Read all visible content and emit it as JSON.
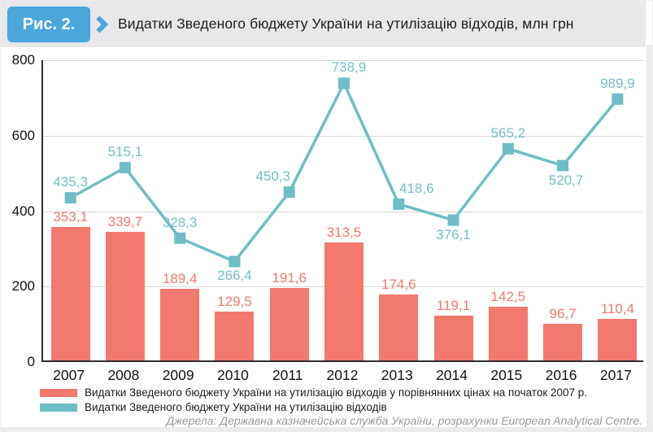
{
  "figure_label": "Рис. 2.",
  "title": "Видатки Зведеного бюджету України на утилізацію відходів, млн грн",
  "source_note": "Джерела: Державна казначейська служба України, розрахунки European Analytical Centre.",
  "colors": {
    "bar": "#F2796E",
    "line": "#6FBDC5",
    "bar_label": "#F2796E",
    "line_label": "#74BFC7",
    "badge": "#4AA7DB",
    "header_bg": "#E8E8EA",
    "grid": "#D8D8D8",
    "axis": "#2d2d2d",
    "tick_text": "#111111",
    "source_text": "#9a9a9a"
  },
  "chart_data": {
    "type": "bar",
    "title": "Видатки Зведеного бюджету України на утилізацію відходів, млн грн",
    "categories": [
      "2007",
      "2008",
      "2009",
      "2010",
      "2011",
      "2012",
      "2013",
      "2014",
      "2015",
      "2016",
      "2017"
    ],
    "series": [
      {
        "name": "Видатки Зведеного бюджету України на утилізацію відходів у порівнянних цінах на початок 2007 р.",
        "type": "bar",
        "values": [
          353.1,
          339.7,
          189.4,
          129.5,
          191.6,
          313.5,
          174.6,
          119.1,
          142.5,
          96.7,
          110.4
        ],
        "labels": [
          "353,1",
          "339,7",
          "189,4",
          "129,5",
          "191,6",
          "313,5",
          "174,6",
          "119,1",
          "142,5",
          "96,7",
          "110,4"
        ]
      },
      {
        "name": "Видатки Зведеного бюджету України на утилізацію відходів",
        "type": "line",
        "values": [
          435.3,
          515.1,
          328.3,
          266.4,
          450.3,
          738.9,
          418.6,
          376.1,
          565.2,
          520.7,
          989.9
        ],
        "labels": [
          "435,3",
          "515,1",
          "328,3",
          "266,4",
          "450,3",
          "738,9",
          "418,6",
          "376,1",
          "565,2",
          "520,7",
          "989,9"
        ],
        "plotted_values": [
          435.3,
          515.1,
          328.3,
          266.4,
          450.3,
          738.9,
          418.6,
          376.1,
          565.2,
          520.7,
          697
        ],
        "label_side": [
          "above",
          "above",
          "above",
          "below",
          "above",
          "above",
          "above",
          "below",
          "above",
          "below",
          "above"
        ],
        "label_dx": [
          0,
          0,
          0,
          0,
          -20,
          6,
          22,
          0,
          0,
          4,
          0
        ]
      }
    ],
    "xlabel": "",
    "ylabel": "",
    "ylim": [
      0,
      800
    ],
    "yticks": [
      0,
      200,
      400,
      600,
      800
    ],
    "grid": "horizontal",
    "legend_position": "bottom-left"
  }
}
